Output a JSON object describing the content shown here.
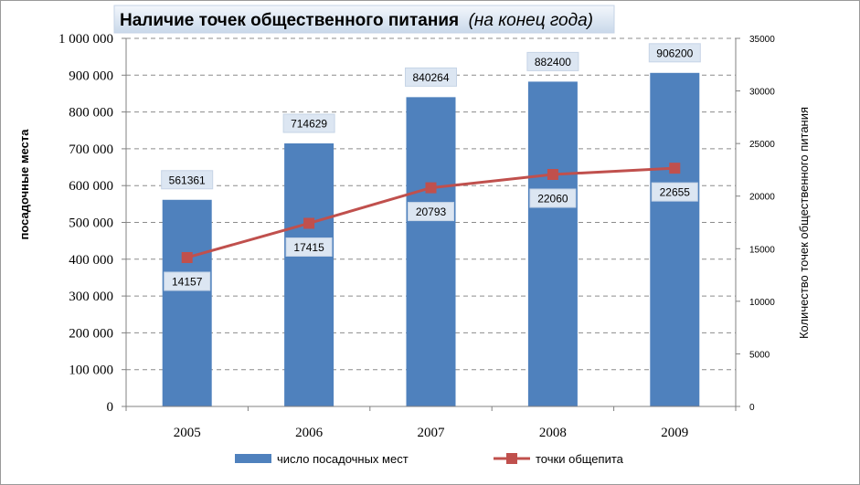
{
  "chart_data": {
    "type": "bar",
    "title": "Наличие точек общественного питания",
    "subtitle": "(на конец года)",
    "categories": [
      "2005",
      "2006",
      "2007",
      "2008",
      "2009"
    ],
    "series": [
      {
        "name": "число посадочных мест",
        "type": "bar",
        "axis": "left",
        "color": "#4F81BD",
        "values": [
          561361,
          714629,
          840264,
          882400,
          906200
        ],
        "labels": [
          "561361",
          "714629",
          "840264",
          "882400",
          "906200"
        ]
      },
      {
        "name": "точки общепита",
        "type": "line",
        "axis": "right",
        "color": "#C0504D",
        "values": [
          14157,
          17415,
          20793,
          22060,
          22655
        ],
        "labels": [
          "14157",
          "17415",
          "20793",
          "22060",
          "22655"
        ]
      }
    ],
    "ylabel": "посадочные места",
    "y2label": "Количество точек общественного питания",
    "ylim": [
      0,
      1000000
    ],
    "y2lim": [
      0,
      35000
    ],
    "yticks": [
      "0",
      "100 000",
      "200 000",
      "300 000",
      "400 000",
      "500 000",
      "600 000",
      "700 000",
      "800 000",
      "900 000",
      "1 000 000"
    ],
    "y2ticks": [
      "0",
      "5000",
      "10000",
      "15000",
      "20000",
      "25000",
      "30000",
      "35000"
    ],
    "grid": true,
    "legend": "bottom"
  }
}
